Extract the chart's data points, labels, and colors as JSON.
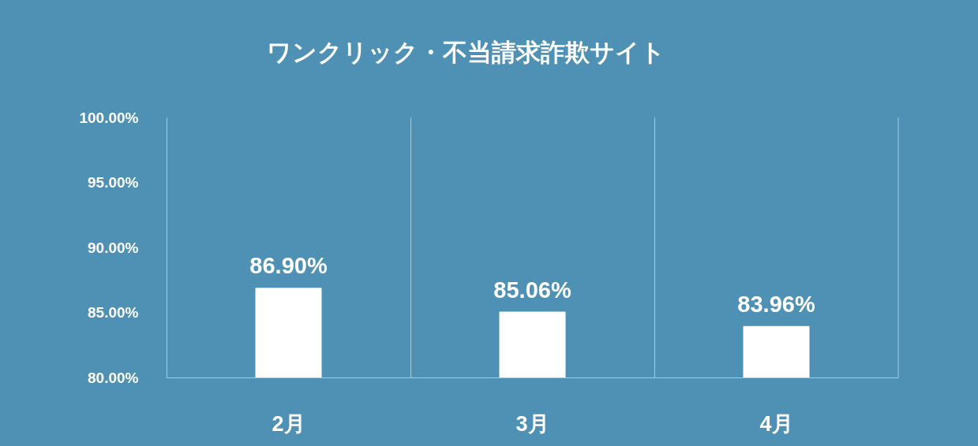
{
  "chart_data": {
    "type": "bar",
    "title": "ワンクリック・不当請求詐欺サイト",
    "categories": [
      "2月",
      "3月",
      "4月"
    ],
    "values": [
      86.9,
      85.06,
      83.96
    ],
    "color": "#ffffff",
    "value_labels": [
      "86.90%",
      "85.06%",
      "83.96%"
    ],
    "ylim": [
      80,
      100
    ],
    "yticks": [
      {
        "value": 80,
        "label": "80.00%"
      },
      {
        "value": 85,
        "label": "85.00%"
      },
      {
        "value": 90,
        "label": "90.00%"
      },
      {
        "value": 95,
        "label": "95.00%"
      },
      {
        "value": 100,
        "label": "100.00%"
      }
    ],
    "grid": "x"
  }
}
